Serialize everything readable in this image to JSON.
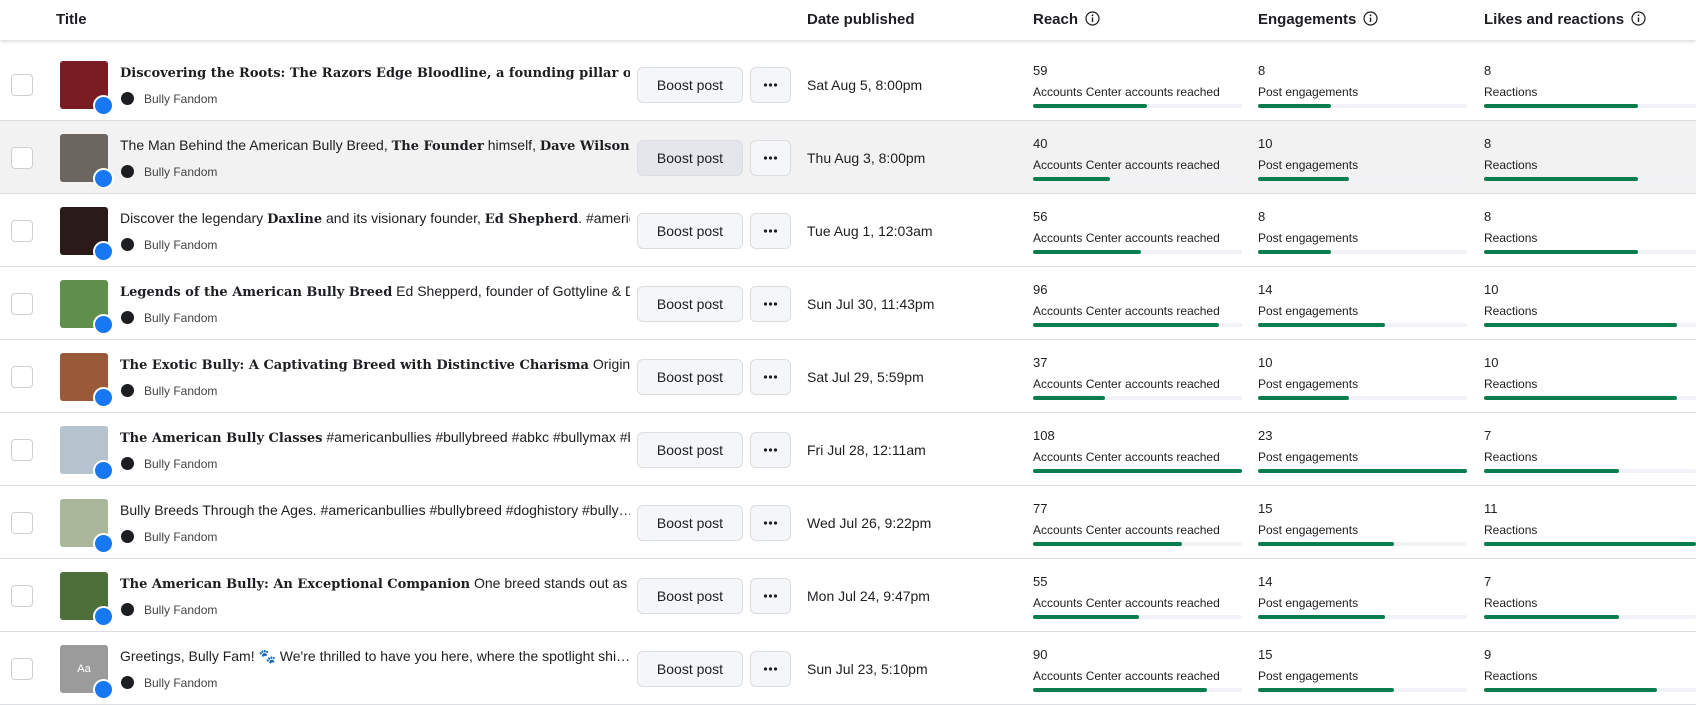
{
  "header": {
    "columns": [
      "Title",
      "Date published",
      "Reach",
      "Engagements",
      "Likes and reactions"
    ]
  },
  "rows": [
    {
      "title": [
        {
          "text": "Discovering the Roots: The Razors Edge Bloodline",
          "bold": true
        },
        {
          "text": ", a founding pillar of the …",
          "bold": true
        }
      ],
      "page": "Bully Fandom",
      "button": "Boost post",
      "date": "Sat Aug 5, 8:00pm",
      "reach": 59,
      "reach_label": "Accounts Center accounts reached",
      "engagements": 8,
      "engagements_label": "Post engagements",
      "reactions": 8,
      "reactions_label": "Reactions"
    },
    {
      "title": [
        {
          "text": "The Man Behind the American Bully Breed, ",
          "bold": false
        },
        {
          "text": "The Founder",
          "bold": true
        },
        {
          "text": " himself, ",
          "bold": false
        },
        {
          "text": "Dave Wilson",
          "bold": true
        },
        {
          "text": ". …",
          "bold": false
        }
      ],
      "page": "Bully Fandom",
      "button": "Boost post",
      "date": "Thu Aug 3, 8:00pm",
      "reach": 40,
      "reach_label": "Accounts Center accounts reached",
      "engagements": 10,
      "engagements_label": "Post engagements",
      "reactions": 8,
      "reactions_label": "Reactions"
    },
    {
      "title": [
        {
          "text": "Discover the legendary ",
          "bold": false
        },
        {
          "text": "Daxline",
          "bold": true
        },
        {
          "text": " and its visionary founder, ",
          "bold": false
        },
        {
          "text": "Ed Shepherd",
          "bold": true
        },
        {
          "text": ". #americ…",
          "bold": false
        }
      ],
      "page": "Bully Fandom",
      "button": "Boost post",
      "date": "Tue Aug 1, 12:03am",
      "reach": 56,
      "reach_label": "Accounts Center accounts reached",
      "engagements": 8,
      "engagements_label": "Post engagements",
      "reactions": 8,
      "reactions_label": "Reactions"
    },
    {
      "title": [
        {
          "text": "Legends of the American Bully Breed",
          "bold": true
        },
        {
          "text": " Ed Shepperd, founder of Gottyline & Da…",
          "bold": false
        }
      ],
      "page": "Bully Fandom",
      "button": "Boost post",
      "date": "Sun Jul 30, 11:43pm",
      "reach": 96,
      "reach_label": "Accounts Center accounts reached",
      "engagements": 14,
      "engagements_label": "Post engagements",
      "reactions": 10,
      "reactions_label": "Reactions"
    },
    {
      "title": [
        {
          "text": "The Exotic Bully: A Captivating Breed with Distinctive Charisma",
          "bold": true
        },
        {
          "text": " Originating…",
          "bold": false
        }
      ],
      "page": "Bully Fandom",
      "button": "Boost post",
      "date": "Sat Jul 29, 5:59pm",
      "reach": 37,
      "reach_label": "Accounts Center accounts reached",
      "engagements": 10,
      "engagements_label": "Post engagements",
      "reactions": 10,
      "reactions_label": "Reactions"
    },
    {
      "title": [
        {
          "text": "The American Bully Classes",
          "bold": true
        },
        {
          "text": " #americanbullies #bullybreed #abkc #bullymax #b…",
          "bold": false
        }
      ],
      "page": "Bully Fandom",
      "button": "Boost post",
      "date": "Fri Jul 28, 12:11am",
      "reach": 108,
      "reach_label": "Accounts Center accounts reached",
      "engagements": 23,
      "engagements_label": "Post engagements",
      "reactions": 7,
      "reactions_label": "Reactions"
    },
    {
      "title": [
        {
          "text": "Bully Breeds Through the Ages. #americanbullies #bullybreed #doghistory #bully…",
          "bold": false
        }
      ],
      "page": "Bully Fandom",
      "button": "Boost post",
      "date": "Wed Jul 26, 9:22pm",
      "reach": 77,
      "reach_label": "Accounts Center accounts reached",
      "engagements": 15,
      "engagements_label": "Post engagements",
      "reactions": 11,
      "reactions_label": "Reactions"
    },
    {
      "title": [
        {
          "text": "The American Bully: An Exceptional Companion",
          "bold": true
        },
        {
          "text": " One breed stands out as an …",
          "bold": false
        }
      ],
      "page": "Bully Fandom",
      "button": "Boost post",
      "date": "Mon Jul 24, 9:47pm",
      "reach": 55,
      "reach_label": "Accounts Center accounts reached",
      "engagements": 14,
      "engagements_label": "Post engagements",
      "reactions": 7,
      "reactions_label": "Reactions"
    },
    {
      "title": [
        {
          "text": "Greetings, Bully Fam! 🐾 We're thrilled to have you here, where the spotlight shi…",
          "bold": false
        }
      ],
      "thumbnail_text": "Aa",
      "page": "Bully Fandom",
      "button": "Boost post",
      "date": "Sun Jul 23, 5:10pm",
      "reach": 90,
      "reach_label": "Accounts Center accounts reached",
      "engagements": 15,
      "engagements_label": "Post engagements",
      "reactions": 9,
      "reactions_label": "Reactions"
    }
  ]
}
